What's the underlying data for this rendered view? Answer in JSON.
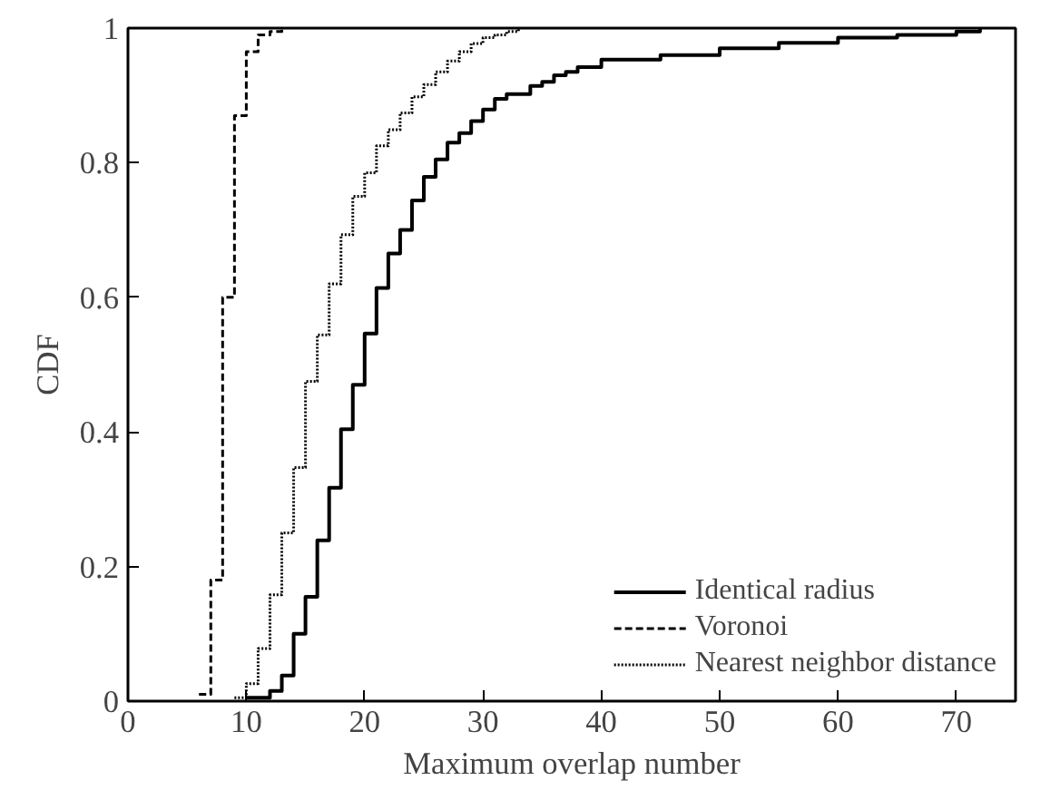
{
  "chart_data": {
    "type": "step",
    "xlabel": "Maximum overlap number",
    "ylabel": "CDF",
    "xlim": [
      0,
      75
    ],
    "ylim": [
      0,
      1
    ],
    "xticks": [
      0,
      10,
      20,
      30,
      40,
      50,
      60,
      70
    ],
    "yticks": [
      0,
      0.2,
      0.4,
      0.6,
      0.8,
      1
    ],
    "grid": false,
    "legend": "bottom right",
    "marker": "none",
    "series": [
      {
        "name": "Identical radius",
        "color": "#000000",
        "line_style": "solid",
        "x": [
          10,
          12,
          13,
          14,
          15,
          16,
          17,
          18,
          19,
          20,
          21,
          22,
          23,
          24,
          25,
          26,
          27,
          28,
          29,
          30,
          31,
          32,
          34,
          35,
          36,
          37,
          38,
          40,
          45,
          50,
          55,
          60,
          65,
          70,
          72
        ],
        "values": [
          0.005,
          0.015,
          0.038,
          0.1,
          0.155,
          0.239,
          0.317,
          0.404,
          0.47,
          0.546,
          0.614,
          0.665,
          0.7,
          0.744,
          0.779,
          0.805,
          0.83,
          0.844,
          0.862,
          0.879,
          0.895,
          0.902,
          0.914,
          0.92,
          0.93,
          0.935,
          0.942,
          0.953,
          0.96,
          0.97,
          0.978,
          0.986,
          0.99,
          0.995,
          1.0
        ]
      },
      {
        "name": "Voronoi",
        "color": "#000000",
        "line_style": "dashed",
        "x": [
          6,
          7,
          8,
          9,
          10,
          11,
          12,
          13
        ],
        "values": [
          0.01,
          0.18,
          0.6,
          0.87,
          0.965,
          0.99,
          0.995,
          1.0
        ]
      },
      {
        "name": "Nearest neighbor distance",
        "color": "#000000",
        "line_style": "dotted",
        "x": [
          9,
          10,
          11,
          12,
          13,
          14,
          15,
          16,
          17,
          18,
          19,
          20,
          21,
          22,
          23,
          24,
          25,
          26,
          27,
          28,
          29,
          30,
          31,
          32,
          33
        ],
        "values": [
          0.005,
          0.026,
          0.078,
          0.158,
          0.25,
          0.347,
          0.475,
          0.544,
          0.62,
          0.693,
          0.75,
          0.785,
          0.825,
          0.849,
          0.874,
          0.898,
          0.916,
          0.935,
          0.951,
          0.965,
          0.977,
          0.986,
          0.99,
          0.995,
          1.0
        ]
      }
    ]
  }
}
